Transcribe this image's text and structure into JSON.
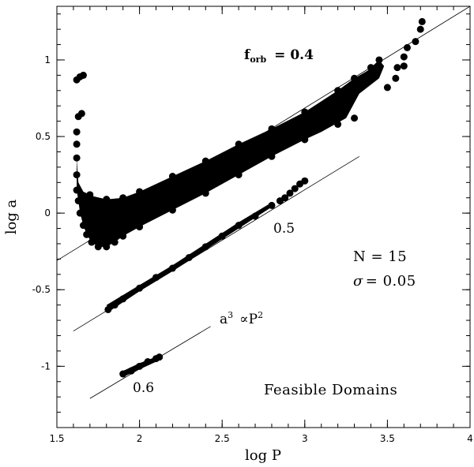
{
  "chart_data": {
    "type": "scatter",
    "xlabel": "log P",
    "ylabel": "log a",
    "xlim": [
      1.5,
      4.0
    ],
    "ylim": [
      -1.4,
      1.35
    ],
    "xticks": [
      {
        "v": 1.5,
        "label": "1.5"
      },
      {
        "v": 2.0,
        "label": "2"
      },
      {
        "v": 2.5,
        "label": "2.5"
      },
      {
        "v": 3.0,
        "label": "3"
      },
      {
        "v": 3.5,
        "label": "3.5"
      },
      {
        "v": 4.0,
        "label": "4"
      }
    ],
    "yticks": [
      {
        "v": 1.0,
        "label": "1"
      },
      {
        "v": 0.5,
        "label": "0.5"
      },
      {
        "v": 0.0,
        "label": "0"
      },
      {
        "v": -0.5,
        "label": "-0.5"
      },
      {
        "v": -1.0,
        "label": "-1"
      }
    ],
    "grid": false,
    "legend": "none",
    "reference_lines": [
      {
        "x": [
          1.5,
          4.0
        ],
        "y": [
          -0.31,
          1.35
        ]
      },
      {
        "x": [
          1.6,
          3.33
        ],
        "y": [
          -0.77,
          0.37
        ]
      },
      {
        "x": [
          1.7,
          2.43
        ],
        "y": [
          -1.21,
          -0.74
        ]
      }
    ],
    "series": [
      {
        "label": "0.4",
        "points": [
          [
            1.62,
            0.87
          ],
          [
            1.64,
            0.89
          ],
          [
            1.66,
            0.9
          ],
          [
            1.63,
            0.63
          ],
          [
            1.65,
            0.65
          ],
          [
            1.62,
            0.53
          ],
          [
            1.62,
            0.45
          ],
          [
            1.62,
            0.36
          ],
          [
            1.62,
            0.25
          ],
          [
            1.62,
            0.15
          ],
          [
            1.63,
            0.08
          ],
          [
            1.64,
            0.0
          ],
          [
            1.66,
            -0.08
          ],
          [
            1.68,
            -0.14
          ],
          [
            1.71,
            -0.19
          ],
          [
            1.75,
            -0.22
          ],
          [
            1.8,
            -0.22
          ],
          [
            1.85,
            -0.19
          ],
          [
            1.9,
            -0.15
          ],
          [
            2.0,
            -0.09
          ],
          [
            2.2,
            0.02
          ],
          [
            2.4,
            0.13
          ],
          [
            2.6,
            0.25
          ],
          [
            2.8,
            0.37
          ],
          [
            3.0,
            0.48
          ],
          [
            3.2,
            0.58
          ],
          [
            3.3,
            0.62
          ],
          [
            1.7,
            0.12
          ],
          [
            1.8,
            0.09
          ],
          [
            1.9,
            0.1
          ],
          [
            2.0,
            0.14
          ],
          [
            2.2,
            0.24
          ],
          [
            2.4,
            0.34
          ],
          [
            2.6,
            0.45
          ],
          [
            2.8,
            0.55
          ],
          [
            3.0,
            0.66
          ],
          [
            3.2,
            0.8
          ],
          [
            3.3,
            0.88
          ],
          [
            3.4,
            0.95
          ],
          [
            3.45,
            1.0
          ],
          [
            3.38,
            0.9
          ],
          [
            3.5,
            0.82
          ],
          [
            3.55,
            0.88
          ],
          [
            3.6,
            0.96
          ],
          [
            3.56,
            0.95
          ],
          [
            3.6,
            1.02
          ],
          [
            3.62,
            1.08
          ],
          [
            3.67,
            1.12
          ],
          [
            3.7,
            1.2
          ],
          [
            3.71,
            1.25
          ]
        ]
      },
      {
        "label": "0.5",
        "points": [
          [
            1.81,
            -0.63
          ],
          [
            1.85,
            -0.6
          ],
          [
            1.9,
            -0.56
          ],
          [
            2.0,
            -0.49
          ],
          [
            2.1,
            -0.42
          ],
          [
            2.2,
            -0.36
          ],
          [
            2.3,
            -0.29
          ],
          [
            2.4,
            -0.22
          ],
          [
            2.5,
            -0.15
          ],
          [
            2.6,
            -0.08
          ],
          [
            2.7,
            -0.02
          ],
          [
            2.8,
            0.05
          ],
          [
            2.85,
            0.08
          ],
          [
            2.88,
            0.1
          ],
          [
            2.91,
            0.13
          ],
          [
            2.94,
            0.16
          ],
          [
            2.97,
            0.19
          ],
          [
            3.0,
            0.21
          ]
        ]
      },
      {
        "label": "0.6",
        "points": [
          [
            1.9,
            -1.05
          ],
          [
            1.95,
            -1.03
          ],
          [
            2.0,
            -1.0
          ],
          [
            2.05,
            -0.97
          ],
          [
            2.1,
            -0.95
          ],
          [
            2.12,
            -0.94
          ]
        ]
      }
    ],
    "annotations": {
      "f_orb_symbol": "f",
      "f_orb_subscript": "orb",
      "f_orb_value": "= 0.4",
      "label_05": "0.5",
      "label_06": "0.6",
      "N_text": "N = 15",
      "sigma_symbol": "σ",
      "sigma_value": "= 0.05",
      "law_a": "a",
      "law_a_exp": "3",
      "law_prop": "∝P",
      "law_p_exp": "2",
      "panel_title": "Feasible Domains"
    }
  }
}
